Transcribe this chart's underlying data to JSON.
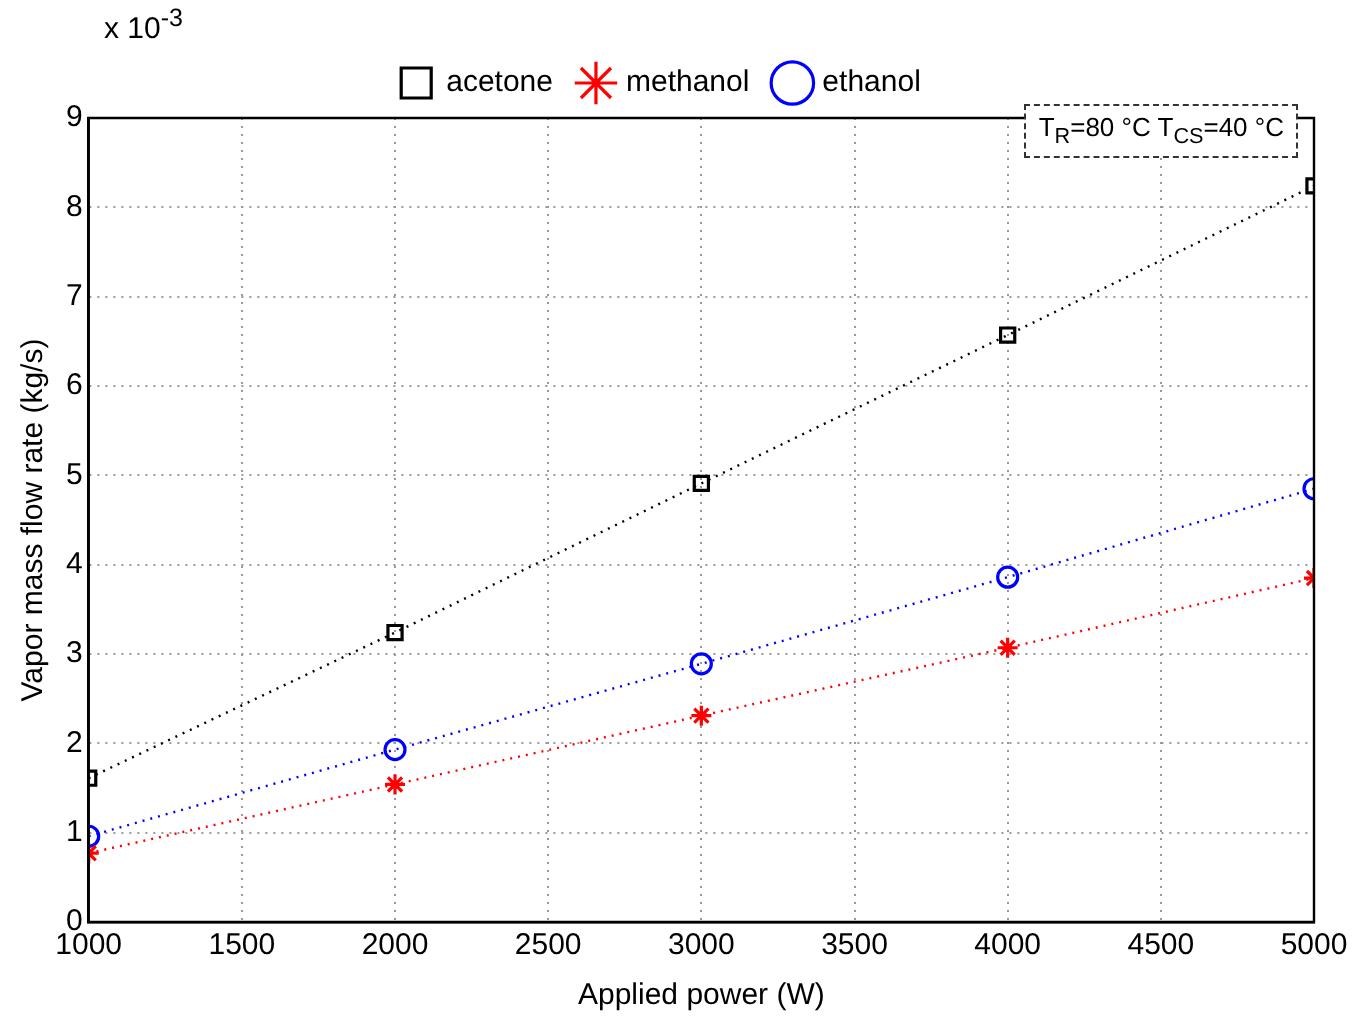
{
  "chart_data": {
    "type": "line",
    "xlabel": "Applied power (W)",
    "ylabel": "Vapor mass flow rate (kg/s)",
    "x": [
      1000,
      2000,
      3000,
      4000,
      5000
    ],
    "series": [
      {
        "name": "acetone",
        "color": "#000000",
        "marker": "square",
        "values": [
          1.61,
          3.24,
          4.91,
          6.57,
          8.24
        ]
      },
      {
        "name": "methanol",
        "color": "#ff0000",
        "marker": "cross",
        "values": [
          0.77,
          1.54,
          2.31,
          3.07,
          3.85
        ]
      },
      {
        "name": "ethanol",
        "color": "#0000ff",
        "marker": "circle",
        "values": [
          0.96,
          1.93,
          2.89,
          3.86,
          4.85
        ]
      }
    ],
    "xlim": [
      1000,
      5000
    ],
    "xticks": [
      1000,
      1500,
      2000,
      2500,
      3000,
      3500,
      4000,
      4500,
      5000
    ],
    "ylim": [
      0,
      9
    ],
    "yticks": [
      0,
      1,
      2,
      3,
      4,
      5,
      6,
      7,
      8,
      9
    ],
    "annotations": [
      "x 10$^{-3}$",
      "T$_{R}$=80 °C T$_{CS}$=40 °C"
    ],
    "grid": true,
    "legend": "top",
    "line_style": "dotted"
  }
}
